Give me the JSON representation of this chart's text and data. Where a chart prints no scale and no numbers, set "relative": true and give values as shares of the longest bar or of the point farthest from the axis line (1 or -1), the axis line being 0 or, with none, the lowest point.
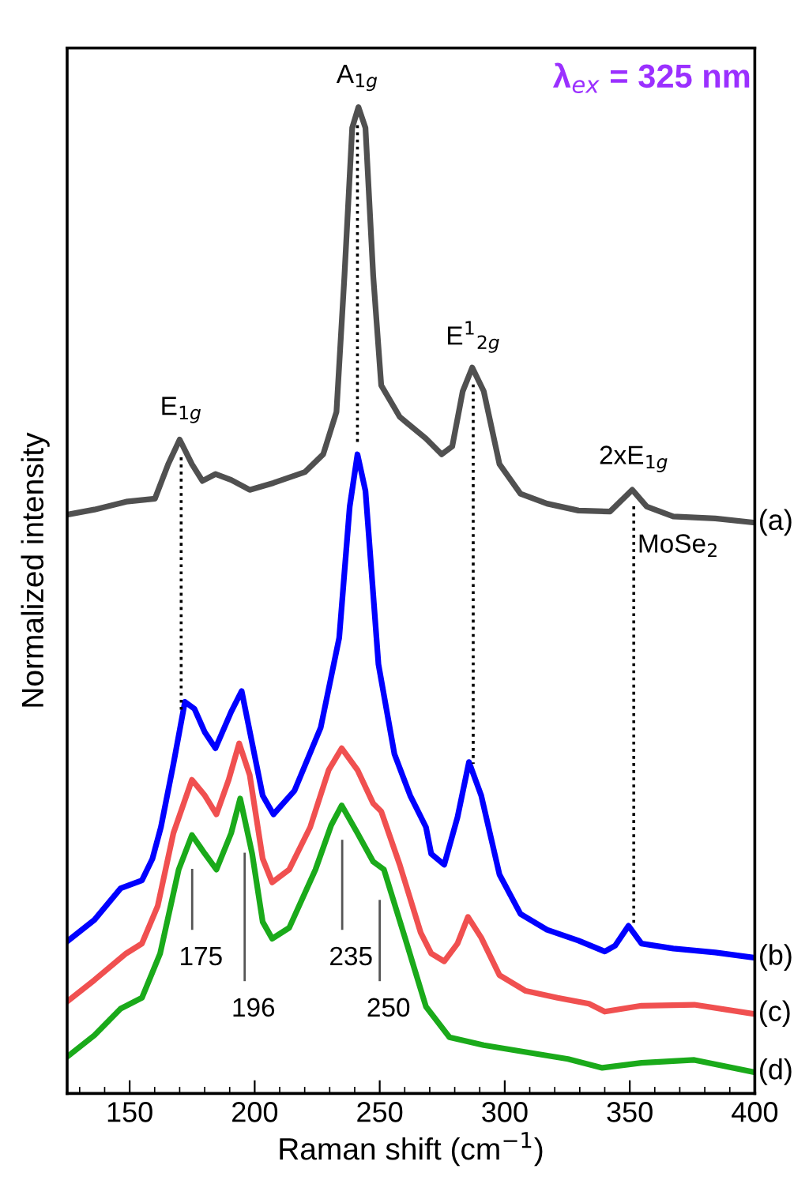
{
  "chart_data": {
    "type": "line",
    "relative": true,
    "title": "λ$_{ex}$ = 325 nm",
    "xlabel": "Raman shift (cm$^{−1}$)",
    "ylabel": "Normalized intensity",
    "xlim": [
      125,
      400
    ],
    "xticks": [
      150,
      200,
      250,
      300,
      350,
      400
    ],
    "grid": false,
    "legend": false,
    "marker": "none",
    "line_style": "solid",
    "series": [
      {
        "name": "(a)",
        "color": "#505050",
        "x": [
          125.4,
          135.9,
          148.6,
          160.1,
          165.4,
          170.0,
          174.9,
          179.1,
          184.3,
          190.6,
          198.0,
          207.5,
          220.1,
          227.4,
          232.7,
          235.9,
          239.0,
          241.5,
          244.3,
          247.4,
          250.6,
          258.0,
          268.5,
          274.8,
          279.0,
          283.2,
          287.0,
          291.6,
          297.9,
          306.3,
          316.9,
          329.5,
          342.1,
          351.0,
          356.8,
          367.4,
          384.2,
          399.0
        ],
        "values": [
          0.587,
          0.592,
          0.6,
          0.603,
          0.638,
          0.663,
          0.638,
          0.621,
          0.628,
          0.622,
          0.612,
          0.619,
          0.63,
          0.648,
          0.691,
          0.829,
          0.979,
          1,
          0.979,
          0.829,
          0.718,
          0.686,
          0.664,
          0.648,
          0.656,
          0.712,
          0.736,
          0.712,
          0.638,
          0.608,
          0.598,
          0.591,
          0.59,
          0.612,
          0.595,
          0.585,
          0.583,
          0.579
        ]
      },
      {
        "name": "(b)",
        "color": "#0000ff",
        "x": [
          125.4,
          135.9,
          146.4,
          154.9,
          159.1,
          162.5,
          167.5,
          172.1,
          175.9,
          180.1,
          184.3,
          190.6,
          194.8,
          199.0,
          203.2,
          207.5,
          215.9,
          226.4,
          233.8,
          238.0,
          241.1,
          244.3,
          249.5,
          255.9,
          262.2,
          268.5,
          270.6,
          275.8,
          281.1,
          285.7,
          290.6,
          297.9,
          306.3,
          316.9,
          329.5,
          340.0,
          344.2,
          349.5,
          354.7,
          367.4,
          384.2,
          399.0
        ],
        "values": [
          0.155,
          0.176,
          0.208,
          0.216,
          0.238,
          0.27,
          0.334,
          0.397,
          0.39,
          0.366,
          0.35,
          0.387,
          0.408,
          0.355,
          0.302,
          0.283,
          0.307,
          0.371,
          0.462,
          0.595,
          0.648,
          0.611,
          0.435,
          0.344,
          0.302,
          0.27,
          0.243,
          0.232,
          0.28,
          0.336,
          0.302,
          0.222,
          0.182,
          0.166,
          0.155,
          0.144,
          0.15,
          0.17,
          0.152,
          0.147,
          0.143,
          0.138
        ]
      },
      {
        "name": "(c)",
        "color": "#f05050",
        "x": [
          125.4,
          135.9,
          148.6,
          154.9,
          161.2,
          167.5,
          174.9,
          180.1,
          184.7,
          189.6,
          193.8,
          198.0,
          203.2,
          207.0,
          213.8,
          222.2,
          229.6,
          234.8,
          241.1,
          247.4,
          250.6,
          258.0,
          266.4,
          270.6,
          275.8,
          281.1,
          285.3,
          290.6,
          297.9,
          308.4,
          321.1,
          333.7,
          340.0,
          354.7,
          375.8,
          399.0
        ],
        "values": [
          0.094,
          0.115,
          0.142,
          0.152,
          0.19,
          0.264,
          0.318,
          0.302,
          0.283,
          0.318,
          0.355,
          0.323,
          0.238,
          0.214,
          0.227,
          0.27,
          0.328,
          0.35,
          0.328,
          0.294,
          0.286,
          0.232,
          0.163,
          0.142,
          0.134,
          0.152,
          0.179,
          0.158,
          0.12,
          0.104,
          0.097,
          0.091,
          0.083,
          0.089,
          0.09,
          0.081
        ]
      },
      {
        "name": "(d)",
        "color": "#1aaa1a",
        "x": [
          125.4,
          135.9,
          146.4,
          154.9,
          162.2,
          169.6,
          174.9,
          180.1,
          184.7,
          190.6,
          194.2,
          199.0,
          203.2,
          207.0,
          213.8,
          224.3,
          230.6,
          234.8,
          241.1,
          247.4,
          251.7,
          260.1,
          268.5,
          277.9,
          291.6,
          308.4,
          325.3,
          339.0,
          354.7,
          375.8,
          399.0
        ],
        "values": [
          0.038,
          0.059,
          0.086,
          0.097,
          0.142,
          0.227,
          0.262,
          0.243,
          0.227,
          0.264,
          0.299,
          0.243,
          0.174,
          0.157,
          0.168,
          0.227,
          0.272,
          0.292,
          0.264,
          0.235,
          0.227,
          0.158,
          0.088,
          0.057,
          0.049,
          0.042,
          0.035,
          0.026,
          0.031,
          0.034,
          0.022
        ]
      }
    ],
    "ref_lines": [
      {
        "axis": "x",
        "value": 170.6,
        "label": "E$_{1g}$",
        "color": "#000000",
        "line_style": "dotted"
      },
      {
        "axis": "x",
        "value": 241.1,
        "label": "A$_{1g}$",
        "color": "#000000",
        "line_style": "dotted"
      },
      {
        "axis": "x",
        "value": 287.4,
        "label": "E$^{1}$$_{2g}$",
        "color": "#000000",
        "line_style": "dotted"
      },
      {
        "axis": "x",
        "value": 351.6,
        "label": "2xE$_{1g}$",
        "color": "#000000",
        "line_style": "dotted"
      },
      {
        "axis": "x",
        "value": 175,
        "label": "175",
        "color": "#555555",
        "line_style": "solid"
      },
      {
        "axis": "x",
        "value": 196,
        "label": "196",
        "color": "#555555",
        "line_style": "solid"
      },
      {
        "axis": "x",
        "value": 235,
        "label": "235",
        "color": "#555555",
        "line_style": "solid"
      },
      {
        "axis": "x",
        "value": 250,
        "label": "250",
        "color": "#555555",
        "line_style": "solid"
      }
    ],
    "annotations": [
      "MoSe$_{2}$"
    ]
  }
}
